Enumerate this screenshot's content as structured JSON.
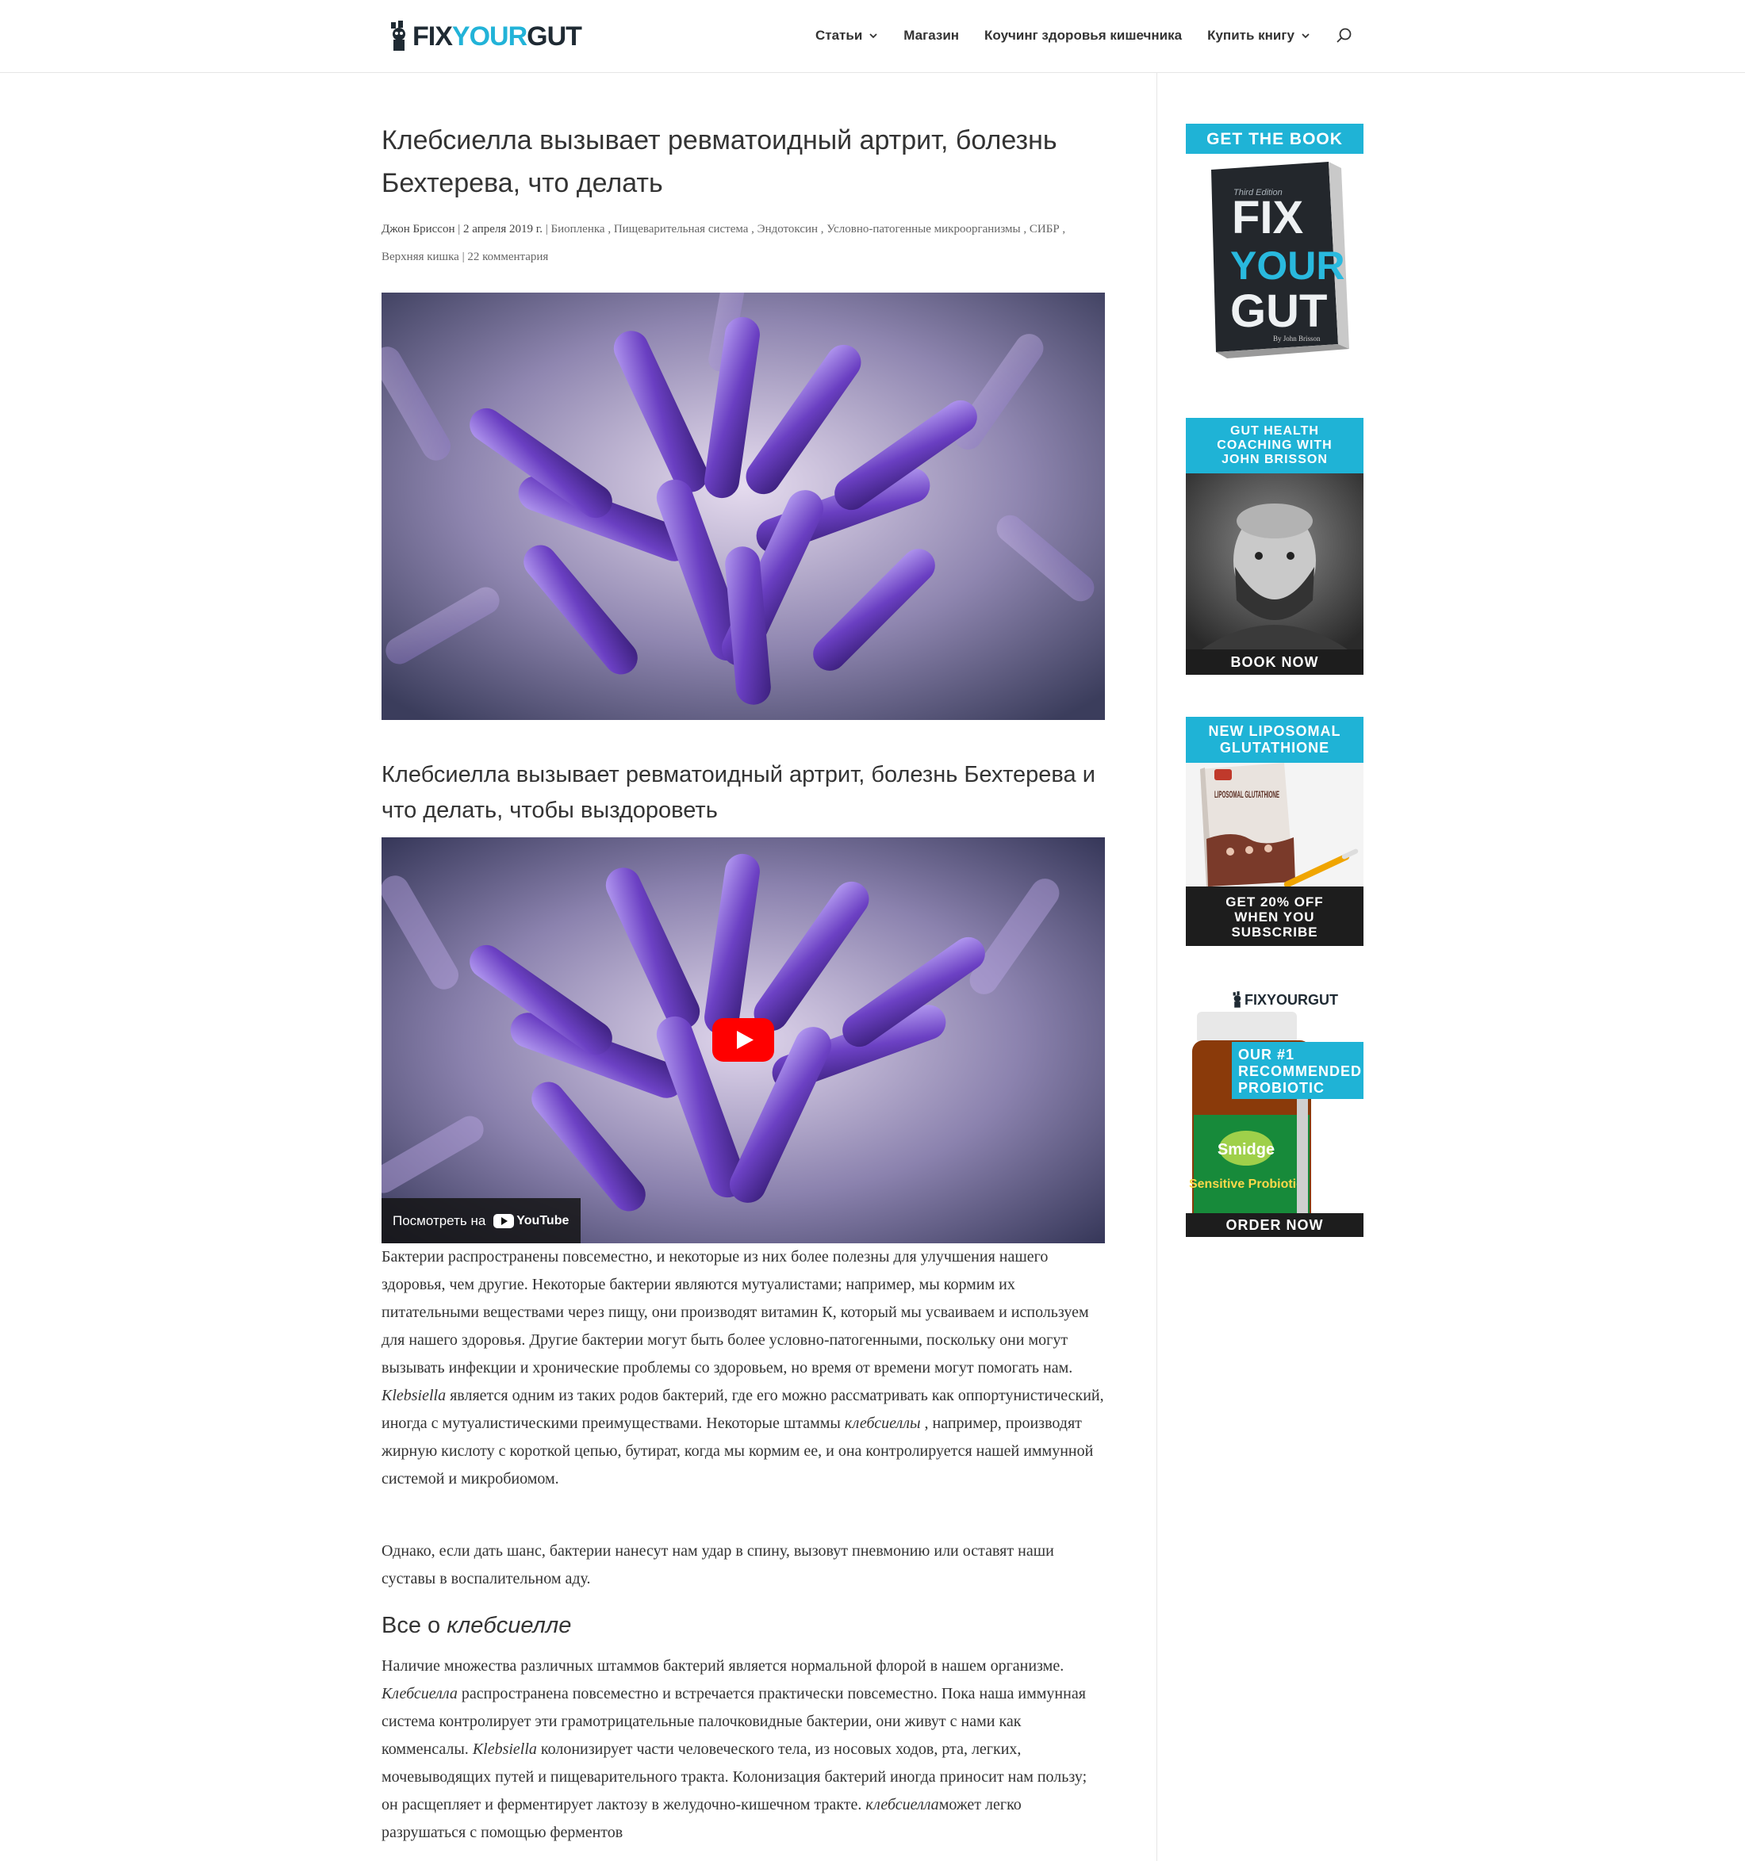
{
  "header": {
    "logo": {
      "fix": "FIX",
      "your": "YOUR",
      "gut": "GUT"
    },
    "nav": [
      {
        "label": "Статьи",
        "has_dropdown": true
      },
      {
        "label": "Магазин",
        "has_dropdown": false
      },
      {
        "label": "Коучинг здоровья кишечника",
        "has_dropdown": false
      },
      {
        "label": "Купить книгу",
        "has_dropdown": true
      }
    ],
    "search_icon": "search-icon"
  },
  "post": {
    "title": "Клебсиелла вызывает ревматоидный артрит, болезнь Бехтерева, что делать",
    "meta": {
      "author": "Джон Бриссон",
      "sep1": " | ",
      "date": "2 апреля 2019 г.",
      "sep2": " | ",
      "categories": "Биопленка , Пищеварительная система , Эндотоксин , Условно-патогенные микроорганизмы , СИБР , Верхняя кишка",
      "sep3": " | ",
      "comments": "22 комментария"
    },
    "subtitle": "Клебсиелла вызывает ревматоидный артрит, болезнь Бехтерева и что делать, чтобы выздороветь",
    "video": {
      "watch_on": "Посмотреть на",
      "platform": "YouTube"
    },
    "p1": {
      "a": "Бактерии распространены повсеместно, и некоторые из них более полезны для улучшения нашего здоровья, чем другие. Некоторые бактерии являются мутуалистами; например, мы кормим их питательными веществами через пищу, они производят витамин К, который мы усваиваем и используем для нашего здоровья. Другие бактерии могут быть более условно-патогенными, поскольку они могут вызывать инфекции и хронические проблемы со здоровьем, но время от времени могут помогать нам. ",
      "b": "Klebsiella",
      "c": " является одним из таких родов бактерий, где его можно рассматривать как оппортунистический, иногда с мутуалистическими преимуществами. Некоторые штаммы ",
      "d": "клебсиеллы",
      "e": " , например, производят жирную кислоту с короткой цепью, бутират, когда мы кормим ее, и она контролируется нашей иммунной системой и микробиомом."
    },
    "p2": "Однако, если дать шанс, бактерии нанесут нам удар в спину, вызовут пневмонию или оставят наши суставы в воспалительном аду.",
    "h3": {
      "a": "Все о ",
      "b": "клебсиелле"
    },
    "p3": {
      "a": "Наличие множества различных штаммов бактерий является нормальной флорой в нашем организме. ",
      "b": "Клебсиелла",
      "c": " распространена повсеместно и встречается практически повсеместно. Пока наша иммунная система контролирует эти грамотрицательные палочковидные бактерии, они живут с нами как комменсалы. ",
      "d": "Klebsiella",
      "e": " колонизирует части человеческого тела, из носовых ходов, рта, легких, мочевыводящих путей и пищеварительного тракта. Колонизация бактерий иногда приносит нам пользу; он расщепляет и ферментирует лактозу в желудочно-кишечном тракте. ",
      "f": "клебсиелла",
      "g": "может легко разрушаться с помощью ферментов"
    }
  },
  "sidebar": {
    "book": {
      "band": "GET THE BOOK",
      "cover_line1": "FIX",
      "cover_line2": "YOUR",
      "cover_line3": "GUT",
      "cover_edition": "Third Edition",
      "cover_author": "By John Brisson"
    },
    "coaching": {
      "band": "GUT HEALTH COACHING WITH JOHN BRISSON",
      "cta": "BOOK NOW"
    },
    "glutathione": {
      "band": "NEW LIPOSOMAL GLUTATHIONE",
      "box_label": "LIPOSOMAL GLUTATHIONE",
      "cta": "GET 20% OFF WHEN YOU SUBSCRIBE"
    },
    "probiotic": {
      "logo": "FIXYOURGUT",
      "band": "OUR #1 RECOMMENDED PROBIOTIC",
      "brand": "Smidge",
      "product": "Sensitive Probiotic",
      "cta": "ORDER NOW"
    }
  },
  "colors": {
    "accent": "#1fb3d6",
    "dark": "#1d1d1d",
    "text": "#333333"
  }
}
